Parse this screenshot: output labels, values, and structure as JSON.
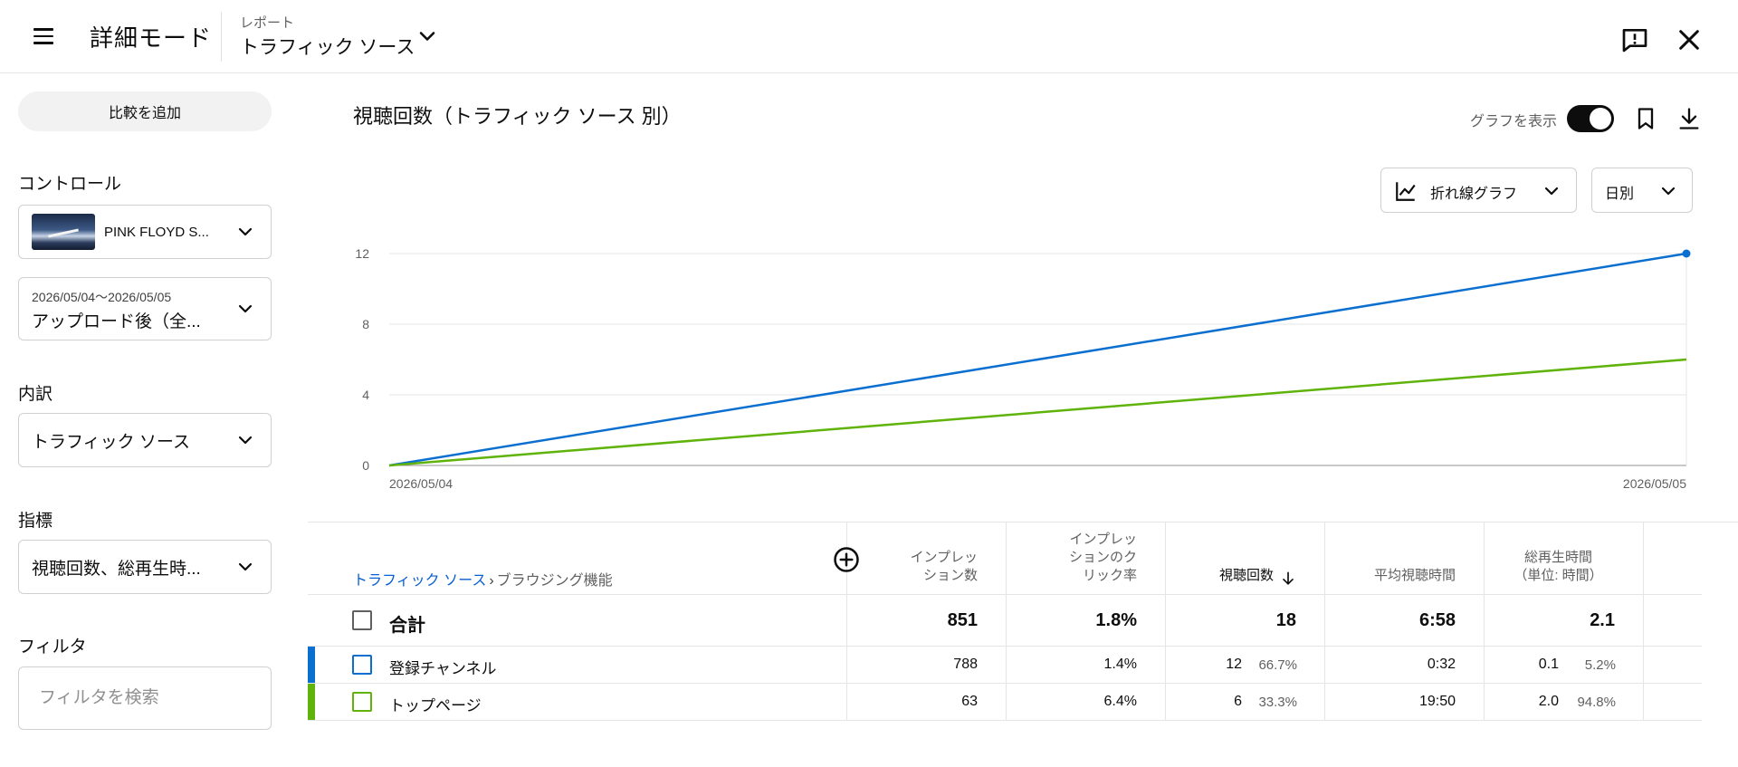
{
  "header": {
    "app_title": "詳細モード",
    "report_label": "レポート",
    "report_value": "トラフィック ソース",
    "icons": {
      "menu": "menu-icon",
      "report_dropdown": "chevron-down-icon",
      "feedback": "feedback-icon",
      "close": "close-icon"
    }
  },
  "sidebar": {
    "compare_label": "比較を追加",
    "controls_heading": "コントロール",
    "video_name": "PINK FLOYD S...",
    "date_range": "2026/05/04～2026/05/05",
    "date_preset": "アップロード後（全...",
    "breakdown_heading": "内訳",
    "breakdown_value": "トラフィック ソース",
    "metrics_heading": "指標",
    "metrics_value": "視聴回数、総再生時...",
    "filter_heading": "フィルタ",
    "filter_placeholder": "フィルタを検索"
  },
  "chart_header": {
    "title": "視聴回数（トラフィック ソース 別）",
    "toggle_label": "グラフを表示",
    "toggle_on": true,
    "chart_type_label": "折れ線グラフ",
    "interval_label": "日別"
  },
  "chart_data": {
    "type": "line",
    "x": [
      "2026/05/04",
      "2026/05/05"
    ],
    "series": [
      {
        "values": [
          0,
          12
        ],
        "color": "#0b6fd0"
      },
      {
        "values": [
          0,
          6
        ],
        "color": "#5fb30a"
      }
    ],
    "ylim": [
      0,
      12
    ],
    "yticks": [
      0,
      4,
      8,
      12
    ],
    "grid": true,
    "xlabel": "",
    "ylabel": ""
  },
  "table": {
    "breadcrumb_link": "トラフィック ソース",
    "breadcrumb_sep": "›",
    "breadcrumb_current": "ブラウジング機能",
    "columns": [
      {
        "line1": "インプレッ",
        "line2": "ション数",
        "line3": ""
      },
      {
        "line1": "インプレッ",
        "line2": "ションのク",
        "line3": "リック率"
      },
      {
        "line1": "視聴回数",
        "line2": "",
        "line3": ""
      },
      {
        "line1": "平均視聴時間",
        "line2": "",
        "line3": ""
      },
      {
        "line1": "総再生時間",
        "line2": "（単位: 時間）",
        "line3": ""
      }
    ],
    "total": {
      "label": "合計",
      "impressions": "851",
      "ctr": "1.8%",
      "views": "18",
      "avg_duration": "6:58",
      "watch_time": "2.1"
    },
    "rows": [
      {
        "label": "登録チャンネル",
        "color": "#0b6fd0",
        "impressions": "788",
        "ctr": "1.4%",
        "views": "12",
        "views_pct": "66.7%",
        "avg_duration": "0:32",
        "watch_time": "0.1",
        "watch_time_pct": "5.2%"
      },
      {
        "label": "トップページ",
        "color": "#5fb30a",
        "impressions": "63",
        "ctr": "6.4%",
        "views": "6",
        "views_pct": "33.3%",
        "avg_duration": "19:50",
        "watch_time": "2.0",
        "watch_time_pct": "94.8%"
      }
    ]
  }
}
